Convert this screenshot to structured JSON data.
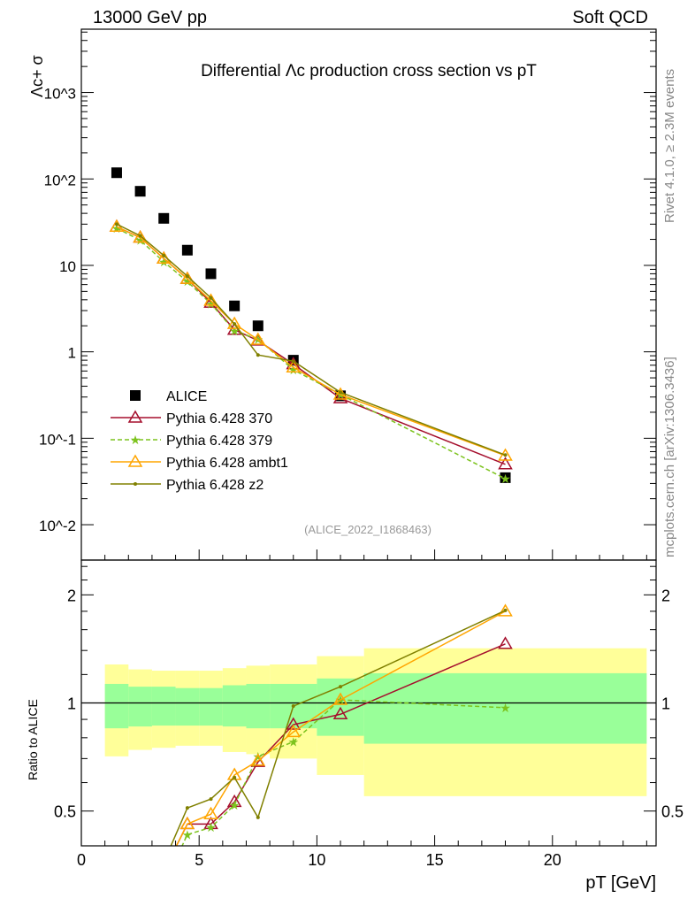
{
  "header": {
    "left": "13000 GeV pp",
    "right": "Soft QCD"
  },
  "side": {
    "rivet": "Rivet 4.1.0, ≥ 2.3M events",
    "mcplots": "mcplots.cern.ch [arXiv:1306.3436]"
  },
  "analysis_id": "(ALICE_2022_I1868463)",
  "chart_data": [
    {
      "type": "scatter",
      "title": "Differential Λc production cross section vs pT",
      "ylabel": "Λc+ σ",
      "xlabel": "pT [GeV]",
      "yscale": "log",
      "xlim": [
        0,
        24.4
      ],
      "ylim": [
        0.0039,
        5400
      ],
      "x_ticks": [
        "0",
        "5",
        "10",
        "15",
        "20"
      ],
      "x_tick_values": [
        0,
        5,
        10,
        15,
        20
      ],
      "y_ticks": [
        "10^-2",
        "10^-1",
        "1",
        "10",
        "10^2",
        "10^3"
      ],
      "y_tick_values": [
        0.01,
        0.1,
        1,
        10,
        100,
        1000
      ],
      "legend_placement": "bottom-left",
      "x": [
        1.5,
        2.5,
        3.5,
        4.5,
        5.5,
        6.5,
        7.5,
        9,
        11,
        18
      ],
      "series": [
        {
          "name": "ALICE",
          "color": "#000000",
          "marker": "square",
          "values": [
            118,
            72,
            35,
            15,
            8,
            3.4,
            2.0,
            0.8,
            0.31,
            0.035
          ]
        },
        {
          "name": "Pythia 6.428 370",
          "color": "#a50f2d",
          "marker": "triangle-open",
          "line": "solid",
          "values": [
            28,
            21,
            12,
            7,
            3.7,
            1.8,
            1.35,
            0.72,
            0.29,
            0.05
          ]
        },
        {
          "name": "Pythia 6.428 379",
          "color": "#7dc31e",
          "marker": "star",
          "line": "dashed",
          "values": [
            27,
            19.5,
            11,
            6.5,
            3.6,
            1.75,
            1.4,
            0.62,
            0.32,
            0.034
          ]
        },
        {
          "name": "Pythia 6.428 ambt1",
          "color": "#ffa500",
          "marker": "triangle-open",
          "line": "solid",
          "values": [
            28,
            21,
            12,
            7,
            3.9,
            2.1,
            1.38,
            0.66,
            0.32,
            0.063
          ]
        },
        {
          "name": "Pythia 6.428 z2",
          "color": "#808000",
          "marker": "dot",
          "line": "solid",
          "values": [
            30,
            22,
            13,
            7.5,
            4.2,
            2.1,
            0.92,
            0.78,
            0.34,
            0.064
          ]
        }
      ]
    },
    {
      "type": "line",
      "ylabel": "Ratio to ALICE",
      "yscale": "log",
      "ylim": [
        0.4,
        2.5
      ],
      "y_ticks": [
        "0.5",
        "1",
        "2"
      ],
      "y_tick_values": [
        0.5,
        1,
        2
      ],
      "bin_edges": [
        1,
        2,
        3,
        4,
        5,
        6,
        7,
        8,
        10,
        12,
        24
      ],
      "band_outer": {
        "color": "#ffff99",
        "low": [
          0.71,
          0.74,
          0.75,
          0.76,
          0.76,
          0.73,
          0.72,
          0.7,
          0.63,
          0.55
        ],
        "high": [
          1.28,
          1.24,
          1.23,
          1.23,
          1.23,
          1.25,
          1.27,
          1.28,
          1.35,
          1.42
        ]
      },
      "band_inner": {
        "color": "#99ff99",
        "low": [
          0.85,
          0.86,
          0.865,
          0.865,
          0.865,
          0.86,
          0.85,
          0.85,
          0.81,
          0.77
        ],
        "high": [
          1.13,
          1.11,
          1.11,
          1.1,
          1.1,
          1.12,
          1.13,
          1.13,
          1.17,
          1.21
        ]
      },
      "x": [
        3.5,
        4.5,
        5.5,
        6.5,
        7.5,
        9,
        11,
        18
      ],
      "series": [
        {
          "name": "Pythia 6.428 370",
          "values": [
            0.34,
            0.46,
            0.46,
            0.53,
            0.685,
            0.87,
            0.93,
            1.46
          ]
        },
        {
          "name": "Pythia 6.428 379",
          "values": [
            0.31,
            0.43,
            0.45,
            0.52,
            0.71,
            0.78,
            1.02,
            0.97
          ]
        },
        {
          "name": "Pythia 6.428 ambt1",
          "values": [
            0.34,
            0.46,
            0.49,
            0.63,
            0.69,
            0.83,
            1.02,
            1.8
          ]
        },
        {
          "name": "Pythia 6.428 z2",
          "values": [
            0.36,
            0.51,
            0.54,
            0.62,
            0.48,
            0.98,
            1.11,
            1.81
          ]
        }
      ]
    }
  ]
}
